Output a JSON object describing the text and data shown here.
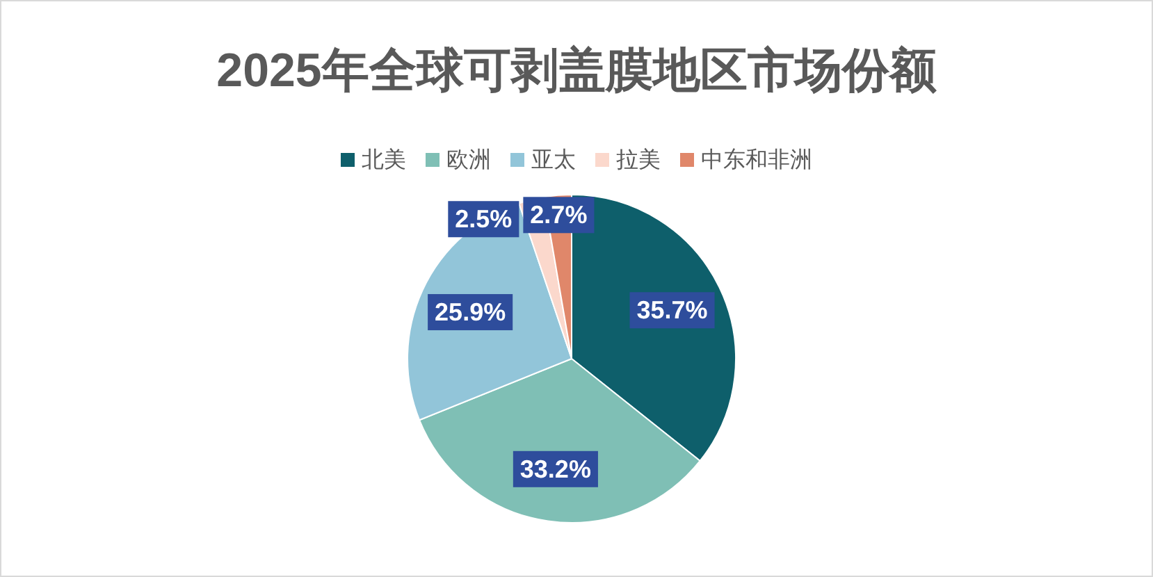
{
  "chart_data": {
    "type": "pie",
    "title": "2025年全球可剥盖膜地区市场份额",
    "categories": [
      "北美",
      "欧洲",
      "亚太",
      "拉美",
      "中东和非洲"
    ],
    "values": [
      35.7,
      33.2,
      25.9,
      2.5,
      2.7
    ],
    "colors": [
      "#0e5f6b",
      "#7fbfb5",
      "#92c5d9",
      "#fbd8cc",
      "#e0876a"
    ],
    "value_labels": [
      "35.7%",
      "33.2%",
      "25.9%",
      "2.5%",
      "2.7%"
    ],
    "legend": "top"
  }
}
